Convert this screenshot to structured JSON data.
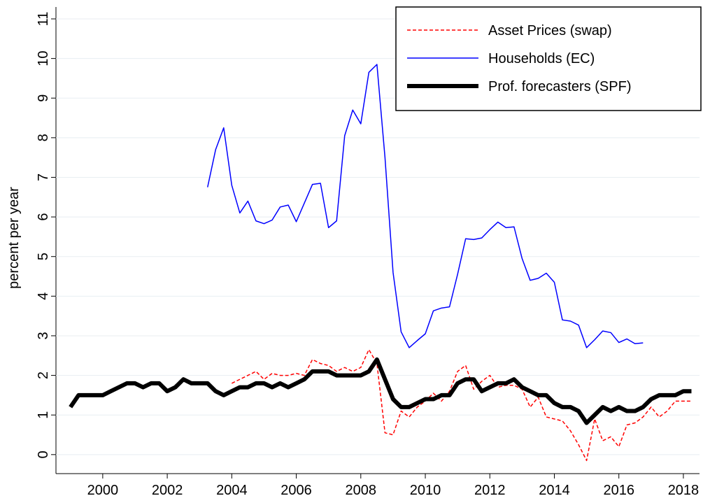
{
  "chart_data": {
    "type": "line",
    "y_label": "percent per year",
    "x": [
      1999,
      1999.25,
      1999.5,
      1999.75,
      2000,
      2000.25,
      2000.5,
      2000.75,
      2001,
      2001.25,
      2001.5,
      2001.75,
      2002,
      2002.25,
      2002.5,
      2002.75,
      2003,
      2003.25,
      2003.5,
      2003.75,
      2004,
      2004.25,
      2004.5,
      2004.75,
      2005,
      2005.25,
      2005.5,
      2005.75,
      2006,
      2006.25,
      2006.5,
      2006.75,
      2007,
      2007.25,
      2007.5,
      2007.75,
      2008,
      2008.25,
      2008.5,
      2008.75,
      2009,
      2009.25,
      2009.5,
      2009.75,
      2010,
      2010.25,
      2010.5,
      2010.75,
      2011,
      2011.25,
      2011.5,
      2011.75,
      2012,
      2012.25,
      2012.5,
      2012.75,
      2013,
      2013.25,
      2013.5,
      2013.75,
      2014,
      2014.25,
      2014.5,
      2014.75,
      2015,
      2015.25,
      2015.5,
      2015.75,
      2016,
      2016.25,
      2016.5,
      2016.75,
      2017,
      2017.25,
      2017.5,
      2017.75,
      2018,
      2018.25
    ],
    "series": [
      {
        "name": "Asset Prices (swap)",
        "color": "#ff0000",
        "dash": true,
        "width": 1.5,
        "values": [
          null,
          null,
          null,
          null,
          null,
          null,
          null,
          null,
          null,
          null,
          null,
          null,
          null,
          null,
          null,
          null,
          null,
          null,
          null,
          null,
          1.8,
          1.9,
          2.0,
          2.1,
          1.9,
          2.05,
          2.0,
          2.0,
          2.05,
          2.0,
          2.4,
          2.3,
          2.25,
          2.1,
          2.2,
          2.1,
          2.2,
          2.65,
          2.3,
          0.55,
          0.5,
          1.1,
          0.95,
          1.2,
          1.35,
          1.55,
          1.35,
          1.6,
          2.1,
          2.25,
          1.65,
          1.85,
          2.0,
          1.7,
          1.75,
          1.75,
          1.65,
          1.2,
          1.45,
          0.95,
          0.9,
          0.85,
          0.6,
          0.25,
          -0.15,
          0.9,
          0.35,
          0.45,
          0.2,
          0.75,
          0.8,
          0.95,
          1.2,
          0.95,
          1.1,
          1.35,
          1.35,
          1.35
        ]
      },
      {
        "name": "Households (EC)",
        "color": "#0000ff",
        "dash": false,
        "width": 1.5,
        "values": [
          null,
          null,
          null,
          null,
          null,
          null,
          null,
          null,
          null,
          null,
          null,
          null,
          null,
          null,
          null,
          null,
          null,
          6.75,
          7.7,
          8.25,
          6.8,
          6.1,
          6.4,
          5.9,
          5.83,
          5.92,
          6.25,
          6.3,
          5.88,
          6.35,
          6.82,
          6.85,
          5.73,
          5.9,
          8.05,
          8.7,
          8.35,
          9.65,
          9.85,
          7.5,
          4.6,
          3.1,
          2.7,
          2.88,
          3.05,
          3.63,
          3.7,
          3.73,
          4.55,
          5.45,
          5.43,
          5.47,
          5.68,
          5.87,
          5.73,
          5.75,
          4.95,
          4.4,
          4.45,
          4.58,
          4.35,
          3.4,
          3.37,
          3.27,
          2.7,
          2.9,
          3.12,
          3.08,
          2.83,
          2.92,
          2.8,
          2.82,
          null,
          null,
          null,
          null,
          null,
          null
        ]
      },
      {
        "name": "Prof. forecasters (SPF)",
        "color": "#000000",
        "dash": false,
        "width": 6,
        "values": [
          1.2,
          1.5,
          1.5,
          1.5,
          1.5,
          1.6,
          1.7,
          1.8,
          1.8,
          1.7,
          1.8,
          1.8,
          1.6,
          1.7,
          1.9,
          1.8,
          1.8,
          1.8,
          1.6,
          1.5,
          1.6,
          1.7,
          1.7,
          1.8,
          1.8,
          1.7,
          1.8,
          1.7,
          1.8,
          1.9,
          2.1,
          2.1,
          2.1,
          2.0,
          2.0,
          2.0,
          2.0,
          2.1,
          2.4,
          1.9,
          1.4,
          1.2,
          1.2,
          1.3,
          1.4,
          1.4,
          1.5,
          1.5,
          1.8,
          1.9,
          1.9,
          1.6,
          1.7,
          1.8,
          1.8,
          1.9,
          1.7,
          1.6,
          1.5,
          1.5,
          1.3,
          1.2,
          1.2,
          1.1,
          0.8,
          1.0,
          1.2,
          1.1,
          1.2,
          1.1,
          1.1,
          1.2,
          1.4,
          1.5,
          1.5,
          1.5,
          1.6,
          1.6
        ]
      }
    ],
    "xlim": [
      1998.55,
      2018.5
    ],
    "xticks": [
      2000,
      2002,
      2004,
      2006,
      2008,
      2010,
      2012,
      2014,
      2016,
      2018
    ],
    "ylim": [
      -0.48,
      11.3
    ],
    "yticks": [
      0,
      1,
      2,
      3,
      4,
      5,
      6,
      7,
      8,
      9,
      10,
      11
    ],
    "grid": true,
    "legend": "top-right"
  }
}
